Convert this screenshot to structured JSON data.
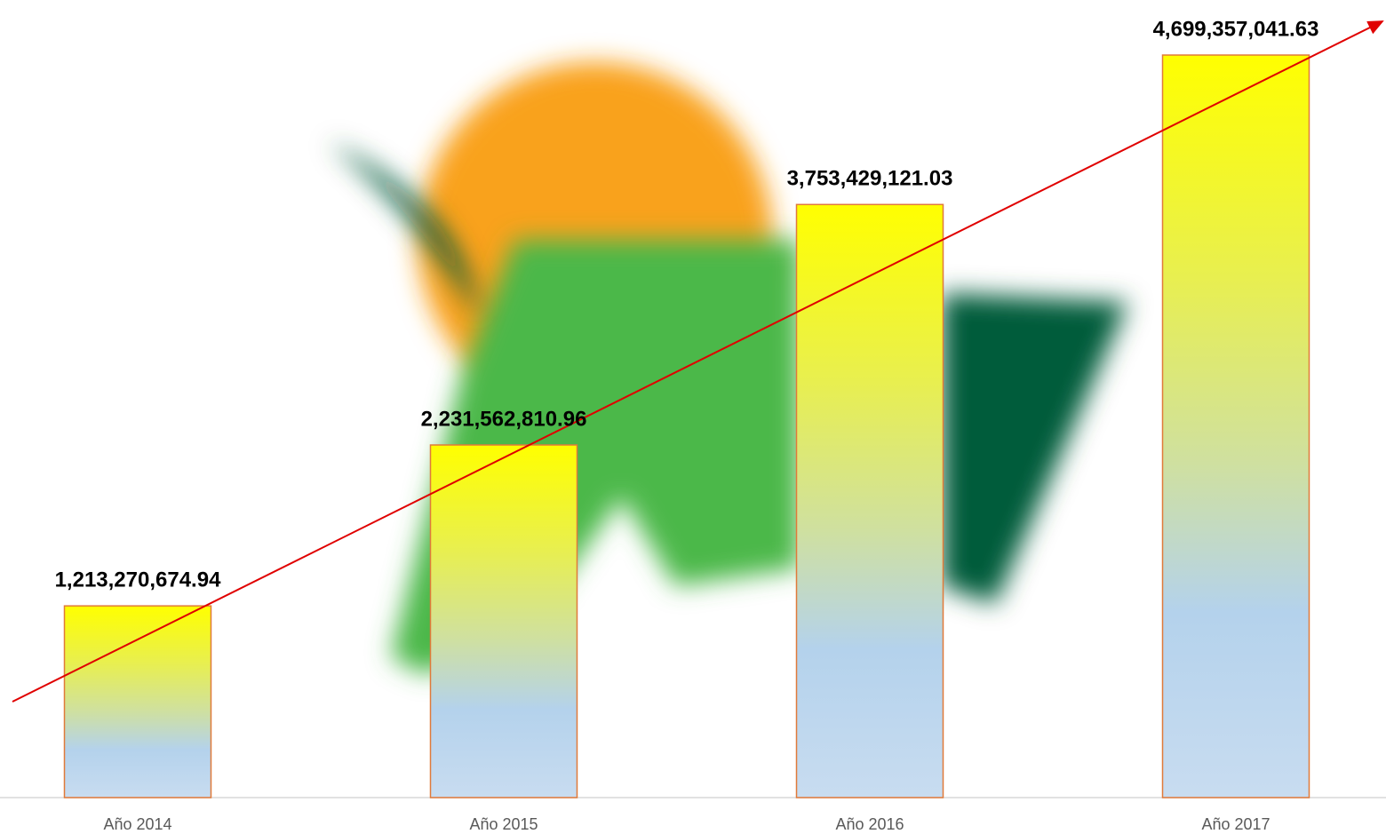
{
  "chart_data": {
    "type": "bar",
    "categories": [
      "Año 2014",
      "Año 2015",
      "Año 2016",
      "Año 2017"
    ],
    "values": [
      1213270674.94,
      2231562810.96,
      3753429121.03,
      4699357041.63
    ],
    "value_labels": [
      "1,213,270,674.94",
      "2,231,562,810.96",
      "3,753,429,121.03",
      "4,699,357,041.63"
    ],
    "ylim": [
      0,
      5000000000
    ]
  }
}
